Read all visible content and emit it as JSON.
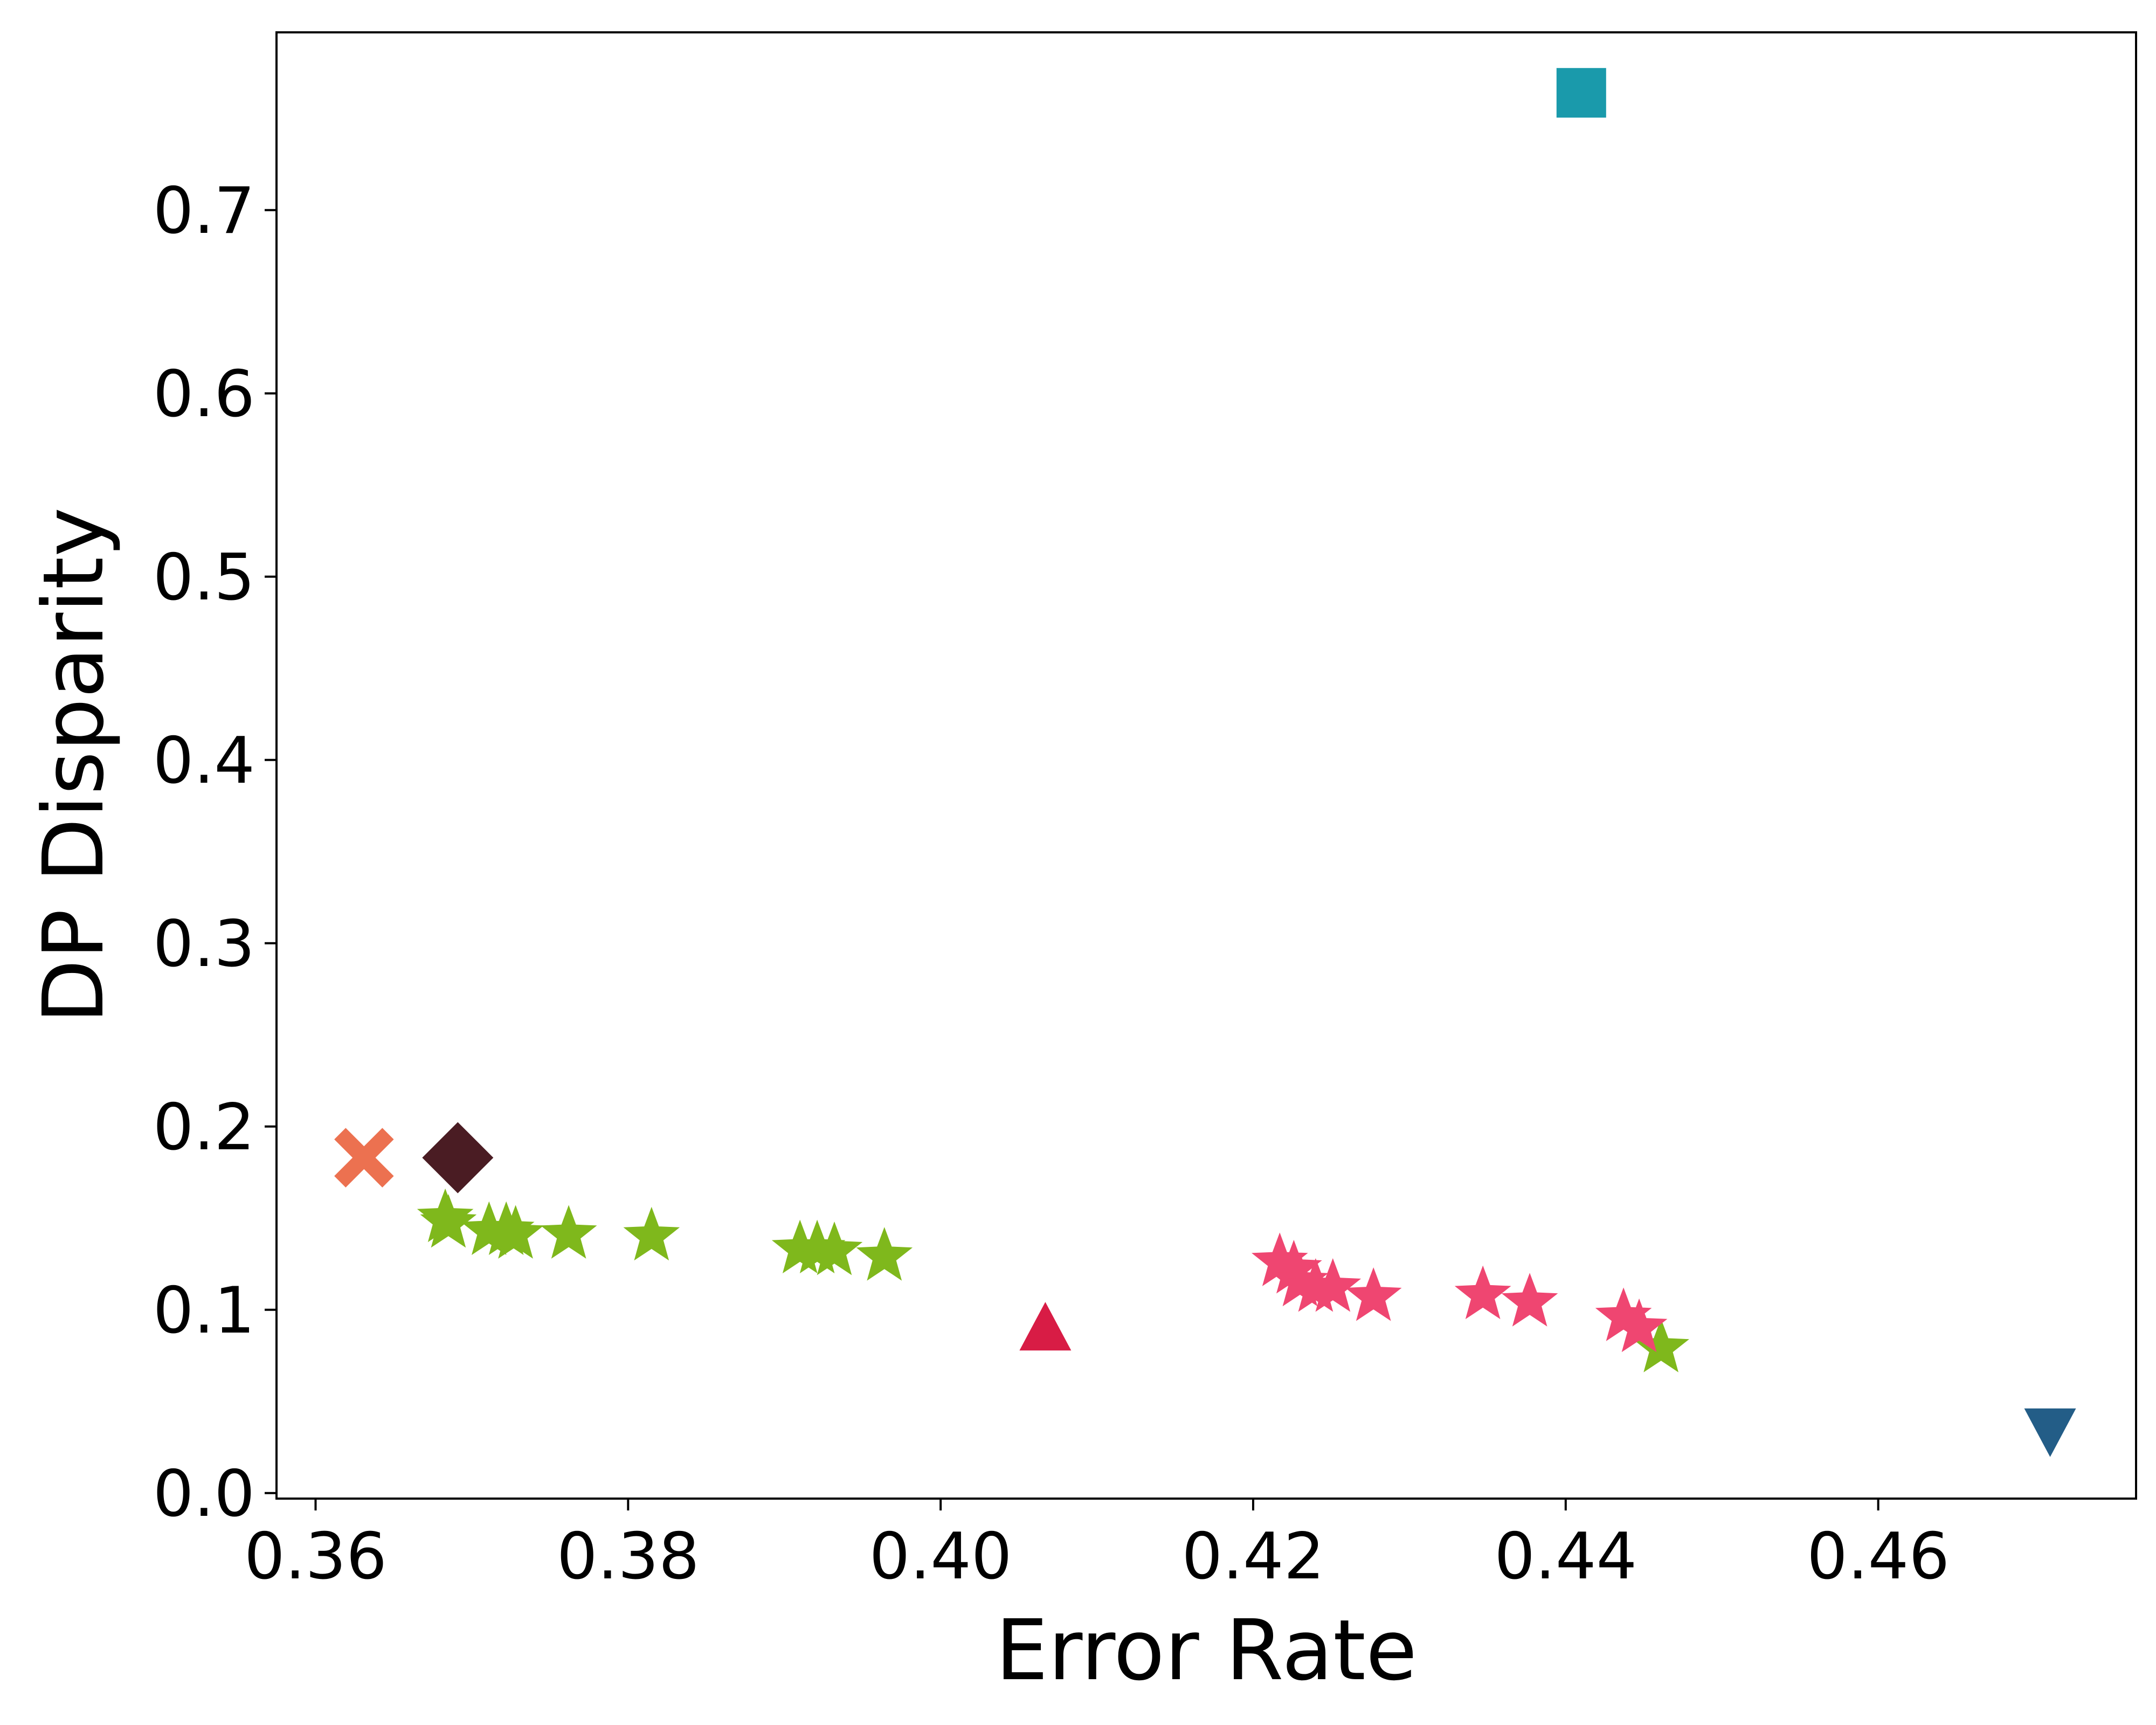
{
  "chart_data": {
    "type": "scatter",
    "title": "",
    "xlabel": "Error Rate",
    "ylabel": "DP Disparity",
    "xlim": [
      0.3575,
      0.4765
    ],
    "ylim": [
      -0.003,
      0.797
    ],
    "xticks": [
      0.36,
      0.38,
      0.4,
      0.42,
      0.44,
      0.46
    ],
    "xtick_labels": [
      "0.36",
      "0.38",
      "0.40",
      "0.42",
      "0.44",
      "0.46"
    ],
    "yticks": [
      0.0,
      0.1,
      0.2,
      0.3,
      0.4,
      0.5,
      0.6,
      0.7
    ],
    "ytick_labels": [
      "0.0",
      "0.1",
      "0.2",
      "0.3",
      "0.4",
      "0.5",
      "0.6",
      "0.7"
    ],
    "grid": false,
    "legend": "none",
    "series": [
      {
        "marker": "star",
        "color": "#7fb81c",
        "points": [
          [
            0.3683,
            0.15
          ],
          [
            0.3685,
            0.147
          ],
          [
            0.3711,
            0.143
          ],
          [
            0.3722,
            0.143
          ],
          [
            0.3728,
            0.141
          ],
          [
            0.3762,
            0.141
          ],
          [
            0.3815,
            0.14
          ],
          [
            0.391,
            0.133
          ],
          [
            0.3921,
            0.133
          ],
          [
            0.3932,
            0.132
          ],
          [
            0.3964,
            0.129
          ],
          [
            0.4461,
            0.079
          ]
        ]
      },
      {
        "marker": "star",
        "color": "#ef4671",
        "points": [
          [
            0.4217,
            0.126
          ],
          [
            0.4226,
            0.122
          ],
          [
            0.423,
            0.115
          ],
          [
            0.424,
            0.112
          ],
          [
            0.4251,
            0.112
          ],
          [
            0.4277,
            0.107
          ],
          [
            0.4347,
            0.108
          ],
          [
            0.4377,
            0.104
          ],
          [
            0.4437,
            0.096
          ],
          [
            0.4447,
            0.09
          ]
        ]
      },
      {
        "marker": "x",
        "color": "#ec7150",
        "points": [
          [
            0.3631,
            0.183
          ]
        ]
      },
      {
        "marker": "diamond",
        "color": "#4a1c23",
        "points": [
          [
            0.3691,
            0.183
          ]
        ]
      },
      {
        "marker": "triangle-up",
        "color": "#d81c45",
        "points": [
          [
            0.4067,
            0.089
          ]
        ]
      },
      {
        "marker": "square",
        "color": "#1a9aab",
        "points": [
          [
            0.441,
            0.764
          ]
        ]
      },
      {
        "marker": "triangle-down",
        "color": "#235d87",
        "points": [
          [
            0.471,
            0.035
          ]
        ]
      }
    ]
  }
}
